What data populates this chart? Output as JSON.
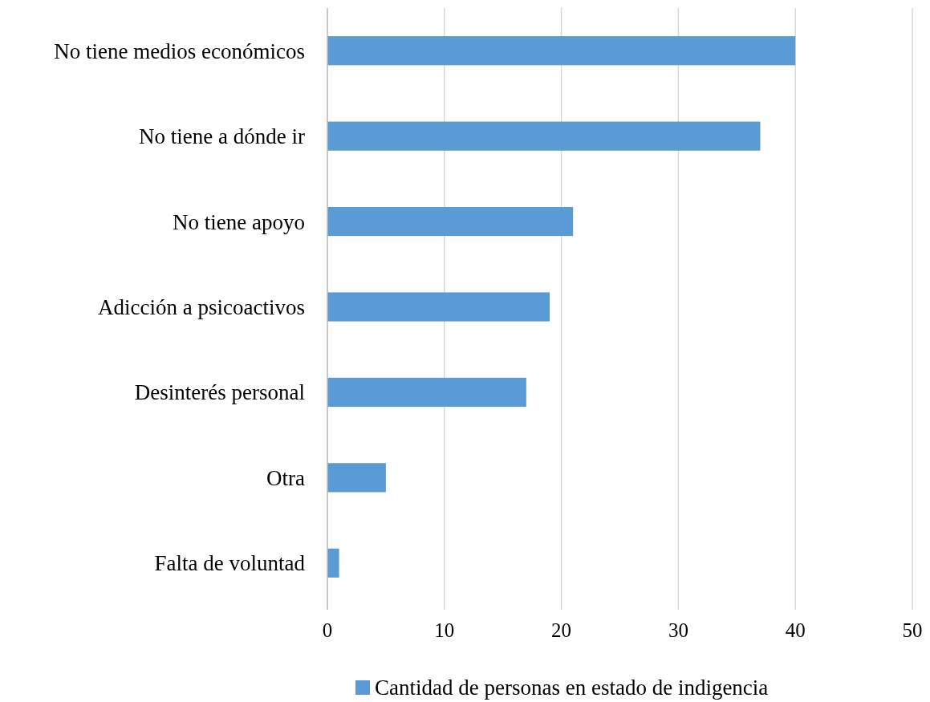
{
  "chart_data": {
    "type": "bar",
    "orientation": "horizontal",
    "categories": [
      "No tiene medios económicos",
      "No tiene a dónde ir",
      "No tiene apoyo",
      "Adicción a psicoactivos",
      "Desinterés personal",
      "Otra",
      "Falta de voluntad"
    ],
    "series": [
      {
        "name": "Cantidad de personas en estado de indigencia",
        "color": "#5b9bd5",
        "values": [
          40,
          37,
          21,
          19,
          17,
          5,
          1
        ]
      }
    ],
    "xlim": [
      0,
      50
    ],
    "xticks": [
      0,
      10,
      20,
      30,
      40,
      50
    ],
    "grid": "x",
    "legend": "bottom"
  }
}
